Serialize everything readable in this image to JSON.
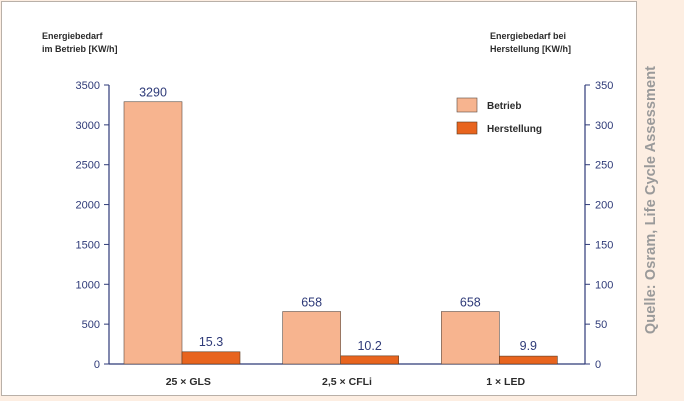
{
  "source_note": "Quelle: Osram, Life Cycle Assessment",
  "colors": {
    "betrieb": "#f7b48f",
    "herstellung": "#e8641e",
    "axis": "#2e3a78",
    "value_label": "#2e3a78"
  },
  "chart_data": {
    "type": "bar",
    "ylabel_left": "Energiebedarf\nim Betrieb [KW/h]",
    "ylabel_right": "Energiebedarf bei\nHerstellung [KW/h]",
    "categories": [
      "25 × GLS",
      "2,5 × CFLi",
      "1 × LED"
    ],
    "series": [
      {
        "name": "Betrieb",
        "axis": "left",
        "values": [
          3290,
          658,
          658
        ],
        "labels": [
          "3290",
          "658",
          "658"
        ]
      },
      {
        "name": "Herstellung",
        "axis": "right",
        "values": [
          15.3,
          10.2,
          9.9
        ],
        "labels": [
          "15.3",
          "10.2",
          "9.9"
        ]
      }
    ],
    "ylim_left": [
      0,
      3500
    ],
    "ylim_right": [
      0,
      350
    ],
    "yticks_left": [
      "0",
      "500",
      "1000",
      "1500",
      "2000",
      "2500",
      "3000",
      "3500"
    ],
    "yticks_right": [
      "0",
      "50",
      "100",
      "150",
      "200",
      "250",
      "300",
      "350"
    ],
    "legend_position": "top-right",
    "grid": false
  }
}
